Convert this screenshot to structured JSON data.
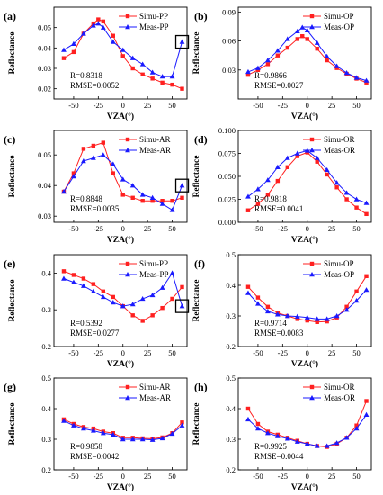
{
  "colors": {
    "simu": "#ff2020",
    "meas": "#1a1aff",
    "axis": "#000000",
    "highlight_box": "#000000"
  },
  "chart_data": [
    {
      "type": "line",
      "panel": "(a)",
      "xlabel": "VZA(°)",
      "ylabel": "Reflectance",
      "xlim": [
        -70,
        65
      ],
      "ylim": [
        0.015,
        0.06
      ],
      "xticks": [
        -50,
        -25,
        0,
        25,
        50
      ],
      "yticks": [
        0.02,
        0.03,
        0.04,
        0.05
      ],
      "ytick_labels": [
        "0.02",
        "0.03",
        "0.04",
        "0.05"
      ],
      "x": [
        -60,
        -50,
        -40,
        -30,
        -25,
        -20,
        -10,
        0,
        10,
        20,
        30,
        40,
        50,
        60
      ],
      "series": [
        {
          "name": "Simu-PP",
          "values": [
            0.035,
            0.038,
            0.047,
            0.052,
            0.054,
            0.053,
            0.046,
            0.036,
            0.03,
            0.027,
            0.025,
            0.023,
            0.022,
            0.02
          ]
        },
        {
          "name": "Meas-PP",
          "values": [
            0.039,
            0.042,
            0.047,
            0.051,
            0.052,
            0.05,
            0.043,
            0.039,
            0.035,
            0.032,
            0.028,
            0.026,
            0.026,
            0.043
          ]
        }
      ],
      "annotation": {
        "r": "R=0.8318",
        "rmse": "RMSE=0.0052"
      },
      "highlight": {
        "x": 60,
        "y": 0.043
      }
    },
    {
      "type": "line",
      "panel": "(b)",
      "xlabel": "VZA(°)",
      "ylabel": "Reflectance",
      "xlim": [
        -70,
        65
      ],
      "ylim": [
        0.0,
        0.095
      ],
      "xticks": [
        -50,
        -25,
        0,
        25,
        50
      ],
      "yticks": [
        0.03,
        0.06,
        0.09
      ],
      "ytick_labels": [
        "0.03",
        "0.06",
        "0.09"
      ],
      "x": [
        -60,
        -50,
        -40,
        -30,
        -20,
        -10,
        -5,
        0,
        10,
        20,
        30,
        40,
        50,
        60
      ],
      "series": [
        {
          "name": "Simu-OP",
          "values": [
            0.025,
            0.03,
            0.036,
            0.045,
            0.053,
            0.062,
            0.065,
            0.062,
            0.052,
            0.04,
            0.032,
            0.026,
            0.021,
            0.017
          ]
        },
        {
          "name": "Meas-OP",
          "values": [
            0.028,
            0.032,
            0.04,
            0.05,
            0.062,
            0.07,
            0.074,
            0.071,
            0.058,
            0.044,
            0.034,
            0.027,
            0.022,
            0.019
          ]
        }
      ],
      "annotation": {
        "r": "R=0.9866",
        "rmse": "RMSE=0.0027"
      }
    },
    {
      "type": "line",
      "panel": "(c)",
      "xlabel": "VZA(°)",
      "ylabel": "Reflectance",
      "xlim": [
        -70,
        65
      ],
      "ylim": [
        0.028,
        0.058
      ],
      "xticks": [
        -50,
        -25,
        0,
        25,
        50
      ],
      "yticks": [
        0.03,
        0.04,
        0.05
      ],
      "ytick_labels": [
        "0.03",
        "0.04",
        "0.05"
      ],
      "x": [
        -60,
        -50,
        -40,
        -30,
        -20,
        -10,
        0,
        10,
        20,
        30,
        40,
        50,
        60
      ],
      "series": [
        {
          "name": "Simu-AR",
          "values": [
            0.038,
            0.044,
            0.052,
            0.053,
            0.054,
            0.044,
            0.037,
            0.036,
            0.035,
            0.035,
            0.035,
            0.035,
            0.036
          ]
        },
        {
          "name": "Meas-AR",
          "values": [
            0.038,
            0.043,
            0.048,
            0.049,
            0.05,
            0.047,
            0.042,
            0.04,
            0.037,
            0.036,
            0.034,
            0.032,
            0.04
          ]
        }
      ],
      "annotation": {
        "r": "R=0.8848",
        "rmse": "RMSE=0.0035"
      },
      "highlight": {
        "x": 60,
        "y": 0.04
      }
    },
    {
      "type": "line",
      "panel": "(d)",
      "xlabel": "VZA(°)",
      "ylabel": "Reflectance",
      "xlim": [
        -70,
        65
      ],
      "ylim": [
        0.0,
        0.1
      ],
      "xticks": [
        -50,
        -25,
        0,
        25,
        50
      ],
      "yticks": [
        0.0,
        0.025,
        0.05,
        0.075,
        0.1
      ],
      "ytick_labels": [
        "0.000",
        "0.025",
        "0.050",
        "0.075",
        "0.100"
      ],
      "x": [
        -60,
        -50,
        -40,
        -30,
        -20,
        -10,
        0,
        10,
        20,
        30,
        40,
        50,
        60
      ],
      "series": [
        {
          "name": "Simu-OR",
          "values": [
            0.013,
            0.02,
            0.03,
            0.045,
            0.06,
            0.072,
            0.076,
            0.066,
            0.052,
            0.038,
            0.025,
            0.016,
            0.009
          ]
        },
        {
          "name": "Meas-OR",
          "values": [
            0.028,
            0.036,
            0.046,
            0.06,
            0.07,
            0.075,
            0.078,
            0.07,
            0.057,
            0.043,
            0.032,
            0.025,
            0.021
          ]
        }
      ],
      "annotation": {
        "r": "R=0.9818",
        "rmse": "RMSE=0.0041"
      }
    },
    {
      "type": "line",
      "panel": "(e)",
      "xlabel": "VZA(°)",
      "ylabel": "Reflectance",
      "xlim": [
        -70,
        65
      ],
      "ylim": [
        0.2,
        0.45
      ],
      "xticks": [
        -50,
        -25,
        0,
        25,
        50
      ],
      "yticks": [
        0.2,
        0.3,
        0.4
      ],
      "ytick_labels": [
        "0.2",
        "0.3",
        "0.4"
      ],
      "x": [
        -60,
        -50,
        -40,
        -30,
        -20,
        -10,
        0,
        10,
        20,
        30,
        40,
        50,
        60
      ],
      "series": [
        {
          "name": "Simu-PP",
          "values": [
            0.405,
            0.395,
            0.385,
            0.37,
            0.35,
            0.335,
            0.31,
            0.285,
            0.27,
            0.285,
            0.305,
            0.33,
            0.362
          ]
        },
        {
          "name": "Meas-PP",
          "values": [
            0.385,
            0.375,
            0.365,
            0.35,
            0.335,
            0.32,
            0.31,
            0.315,
            0.33,
            0.34,
            0.36,
            0.4,
            0.31
          ]
        }
      ],
      "annotation": {
        "r": "R=0.5392",
        "rmse": "RMSE=0.0277"
      },
      "highlight": {
        "x": 60,
        "y": 0.31
      }
    },
    {
      "type": "line",
      "panel": "(f)",
      "xlabel": "VZA(°)",
      "ylabel": "Reflectance",
      "xlim": [
        -70,
        65
      ],
      "ylim": [
        0.2,
        0.5
      ],
      "xticks": [
        -50,
        -25,
        0,
        25,
        50
      ],
      "yticks": [
        0.2,
        0.3,
        0.4,
        0.5
      ],
      "ytick_labels": [
        "0.2",
        "0.3",
        "0.4",
        "0.5"
      ],
      "x": [
        -60,
        -50,
        -40,
        -30,
        -20,
        -10,
        0,
        10,
        20,
        30,
        40,
        50,
        60
      ],
      "series": [
        {
          "name": "Simu-OP",
          "values": [
            0.395,
            0.36,
            0.33,
            0.31,
            0.3,
            0.29,
            0.285,
            0.28,
            0.282,
            0.295,
            0.33,
            0.38,
            0.43
          ]
        },
        {
          "name": "Meas-OP",
          "values": [
            0.375,
            0.34,
            0.315,
            0.305,
            0.3,
            0.298,
            0.295,
            0.29,
            0.29,
            0.3,
            0.32,
            0.35,
            0.385
          ]
        }
      ],
      "annotation": {
        "r": "R=0.9714",
        "rmse": "RMSE=0.0083"
      }
    },
    {
      "type": "line",
      "panel": "(g)",
      "xlabel": "VZA(°)",
      "ylabel": "Reflectance",
      "xlim": [
        -70,
        65
      ],
      "ylim": [
        0.2,
        0.5
      ],
      "xticks": [
        -50,
        -25,
        0,
        25,
        50
      ],
      "yticks": [
        0.2,
        0.3,
        0.4,
        0.5
      ],
      "ytick_labels": [
        "0.2",
        "0.3",
        "0.4",
        "0.5"
      ],
      "x": [
        -60,
        -50,
        -40,
        -30,
        -20,
        -10,
        0,
        10,
        20,
        30,
        40,
        50,
        60
      ],
      "series": [
        {
          "name": "Simu-AR",
          "values": [
            0.365,
            0.35,
            0.34,
            0.335,
            0.325,
            0.32,
            0.305,
            0.305,
            0.303,
            0.302,
            0.306,
            0.32,
            0.355
          ]
        },
        {
          "name": "Meas-AR",
          "values": [
            0.36,
            0.345,
            0.335,
            0.328,
            0.32,
            0.315,
            0.3,
            0.3,
            0.3,
            0.298,
            0.303,
            0.318,
            0.345
          ]
        }
      ],
      "annotation": {
        "r": "R=0.9858",
        "rmse": "RMSE=0.0042"
      }
    },
    {
      "type": "line",
      "panel": "(h)",
      "xlabel": "VZA(°)",
      "ylabel": "Reflectance",
      "xlim": [
        -70,
        65
      ],
      "ylim": [
        0.2,
        0.5
      ],
      "xticks": [
        -50,
        -25,
        0,
        25,
        50
      ],
      "yticks": [
        0.2,
        0.3,
        0.4,
        0.5
      ],
      "ytick_labels": [
        "0.2",
        "0.3",
        "0.4",
        "0.5"
      ],
      "x": [
        -60,
        -50,
        -40,
        -30,
        -20,
        -10,
        0,
        10,
        20,
        30,
        40,
        50,
        60
      ],
      "series": [
        {
          "name": "Simu-OR",
          "values": [
            0.4,
            0.35,
            0.325,
            0.315,
            0.305,
            0.295,
            0.285,
            0.278,
            0.275,
            0.285,
            0.305,
            0.345,
            0.425
          ]
        },
        {
          "name": "Meas-OR",
          "values": [
            0.365,
            0.335,
            0.32,
            0.31,
            0.302,
            0.292,
            0.285,
            0.278,
            0.278,
            0.288,
            0.305,
            0.335,
            0.38
          ]
        }
      ],
      "annotation": {
        "r": "R=0.9925",
        "rmse": "RMSE=0.0044"
      }
    }
  ]
}
